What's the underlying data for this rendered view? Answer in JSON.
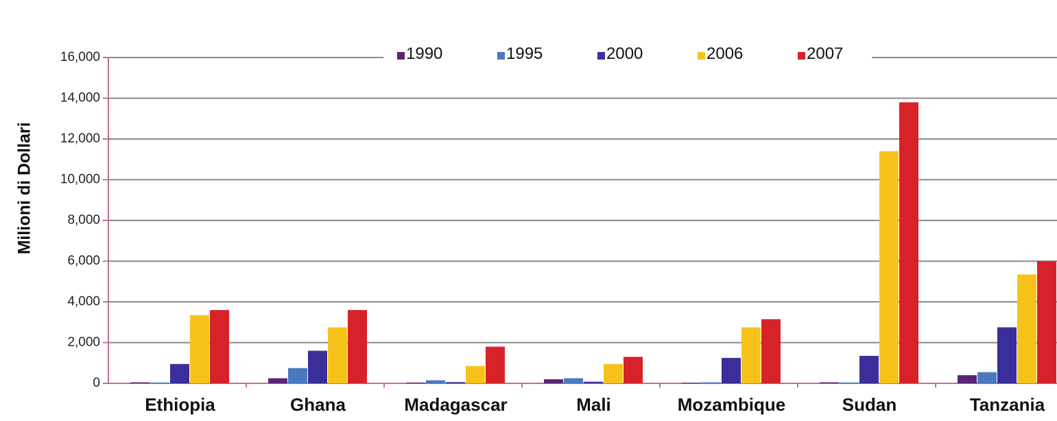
{
  "chart_data": {
    "type": "bar",
    "title": "",
    "xlabel": "",
    "ylabel": "Milioni di Dollari",
    "ylim": [
      0,
      16000
    ],
    "yticks": [
      0,
      2000,
      4000,
      6000,
      8000,
      10000,
      12000,
      14000,
      16000
    ],
    "ytick_labels": [
      "0",
      "2,000",
      "4,000",
      "6,000",
      "8,000",
      "10,000",
      "12,000",
      "14,000",
      "16,000"
    ],
    "grid": true,
    "legend_position": "top-center",
    "categories": [
      "Ethiopia",
      "Ghana",
      "Madagascar",
      "Mali",
      "Mozambique",
      "Sudan",
      "Tanzania"
    ],
    "series": [
      {
        "name": "1990",
        "color": "#5a2475",
        "values": [
          50,
          250,
          40,
          200,
          30,
          50,
          400
        ]
      },
      {
        "name": "1995",
        "color": "#4b78c0",
        "values": [
          40,
          750,
          150,
          250,
          50,
          40,
          550
        ]
      },
      {
        "name": "2000",
        "color": "#3a2f9a",
        "values": [
          950,
          1600,
          60,
          80,
          1250,
          1350,
          2750
        ]
      },
      {
        "name": "2006",
        "color": "#f7c31b",
        "values": [
          3350,
          2750,
          850,
          950,
          2750,
          11400,
          5350
        ]
      },
      {
        "name": "2007",
        "color": "#d8222a",
        "values": [
          3600,
          3600,
          1800,
          1300,
          3150,
          13800,
          6000
        ]
      }
    ]
  }
}
